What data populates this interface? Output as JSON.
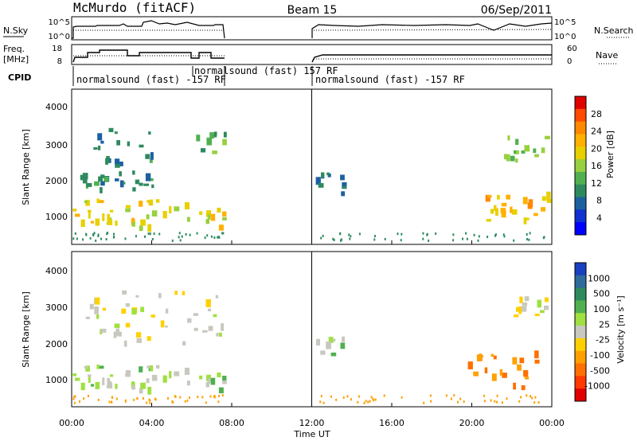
{
  "header": {
    "station": "McMurdo (fitACF)",
    "beam": "Beam 15",
    "date": "06/Sep/2011"
  },
  "panels": {
    "nsky_label": "N.Sky",
    "nsky_ticks": [
      "10^5",
      "10^0"
    ],
    "nsearch_label": "N.Search",
    "nsearch_ticks": [
      "10^5",
      "10^0"
    ],
    "freq_label_1": "Freq.",
    "freq_label_2": "[MHz]",
    "freq_ticks": [
      "18",
      "8"
    ],
    "nave_label": "Nave",
    "nave_ticks": [
      "60",
      "0"
    ],
    "cpid_label": "CPID",
    "cpid_segments": [
      {
        "text": "normalsound (fast) -157 RF",
        "row": 1
      },
      {
        "text": "normalsound (fast) 157 RF",
        "row": 0
      },
      {
        "text": "normalsound (fast) -157 RF",
        "row": 1
      }
    ]
  },
  "axes": {
    "ylabel": "Slant Range [km]",
    "yticks": [
      "4000",
      "3000",
      "2000",
      "1000"
    ],
    "xticks": [
      "00:00",
      "04:00",
      "08:00",
      "12:00",
      "16:00",
      "20:00",
      "00:00"
    ],
    "xlabel": "Time UT"
  },
  "colorbars": {
    "power": {
      "label": "Power [dB]",
      "ticks": [
        "28",
        "24",
        "20",
        "16",
        "12",
        "8",
        "4"
      ],
      "colors": [
        "#e00000",
        "#ff4a00",
        "#ff8800",
        "#ffb000",
        "#e8d000",
        "#98d040",
        "#50b050",
        "#2e8a5e",
        "#1d60a0",
        "#1030d0",
        "#0000ff"
      ]
    },
    "velocity": {
      "label": "Velocity [m s⁻¹]",
      "ticks": [
        "1000",
        "500",
        "100",
        "25",
        "-25",
        "-100",
        "-500",
        "-1000"
      ],
      "colors": [
        "#1a40c0",
        "#2e6a9c",
        "#2e8a5e",
        "#50b050",
        "#a0e040",
        "#c8c8c0",
        "#ffd000",
        "#ffa000",
        "#ff7000",
        "#ff3a00",
        "#e00000"
      ]
    }
  },
  "chart_data": {
    "type": "heatmap",
    "title": "McMurdo (fitACF)  Beam 15  06/Sep/2011",
    "xlabel": "Time UT",
    "ylabel": "Slant Range [km]",
    "x_range_hours": [
      0,
      24
    ],
    "y_range_km": [
      200,
      4600
    ],
    "data_gaps_hours": [
      [
        7.7,
        12.0
      ]
    ],
    "panels": [
      {
        "name": "Power",
        "units": "dB",
        "scale": [
          0,
          30
        ],
        "regions": [
          {
            "t0": 0.0,
            "t1": 7.6,
            "r0": 700,
            "r1": 1500,
            "value": 18
          },
          {
            "t0": 0.2,
            "t1": 4.2,
            "r0": 1800,
            "r1": 2300,
            "value": 10
          },
          {
            "t0": 1.0,
            "t1": 4.0,
            "r0": 2400,
            "r1": 3500,
            "value": 9
          },
          {
            "t0": 6.2,
            "t1": 7.6,
            "r0": 2700,
            "r1": 3400,
            "value": 12
          },
          {
            "t0": 12.2,
            "t1": 13.8,
            "r0": 1700,
            "r1": 2300,
            "value": 8
          },
          {
            "t0": 20.2,
            "t1": 23.8,
            "r0": 900,
            "r1": 1700,
            "value": 20
          },
          {
            "t0": 21.5,
            "t1": 23.8,
            "r0": 2600,
            "r1": 3300,
            "value": 14
          }
        ]
      },
      {
        "name": "Velocity",
        "units": "m s^-1",
        "scale": [
          -1000,
          1000
        ],
        "regions": [
          {
            "t0": 0.0,
            "t1": 7.6,
            "r0": 700,
            "r1": 1400,
            "value": 150
          },
          {
            "t0": 0.5,
            "t1": 7.6,
            "r0": 2000,
            "r1": 3500,
            "value": 0
          },
          {
            "t0": 12.2,
            "t1": 13.5,
            "r0": 1600,
            "r1": 2200,
            "value": 150
          },
          {
            "t0": 19.8,
            "t1": 23.2,
            "r0": 800,
            "r1": 1800,
            "value": -450
          },
          {
            "t0": 21.8,
            "t1": 23.8,
            "r0": 2800,
            "r1": 3400,
            "value": 0
          }
        ]
      }
    ]
  }
}
